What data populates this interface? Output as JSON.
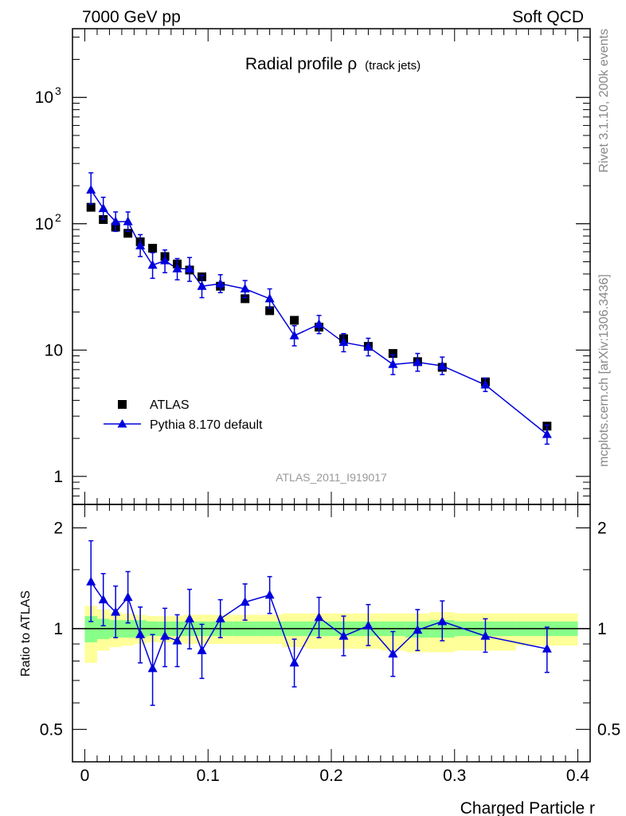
{
  "header": {
    "energy": "7000 GeV pp",
    "category": "Soft QCD",
    "rivet": "Rivet 3.1.10,  200k events",
    "source": "mcplots.cern.ch [arXiv:1306.3436]"
  },
  "colors": {
    "mc": "#0000dd",
    "band_stat": "#88ff88",
    "band_total": "#ffff99",
    "data": "#000000"
  },
  "chart_data": [
    {
      "type": "scatter",
      "title": "Radial profile ρ",
      "title_sub": "(track jets)",
      "analysis": "ATLAS_2011_I919017",
      "yscale": "log",
      "xlim": [
        -0.01,
        0.41
      ],
      "ylim": [
        0.6,
        3500
      ],
      "x_ticks": [
        0,
        0.1,
        0.2,
        0.3,
        0.4
      ],
      "y_ticks": [
        {
          "value": 1,
          "label": "1"
        },
        {
          "value": 10,
          "label": "10"
        },
        {
          "value": 100,
          "label": "10",
          "exp": "2"
        },
        {
          "value": 1000,
          "label": "10",
          "exp": "3"
        }
      ],
      "legend": {
        "position": "bottom-left",
        "entries": [
          "ATLAS",
          "Pythia 8.170 default"
        ]
      },
      "series": [
        {
          "name": "ATLAS",
          "marker": "square",
          "x": [
            0.005,
            0.015,
            0.025,
            0.035,
            0.045,
            0.055,
            0.065,
            0.075,
            0.085,
            0.095,
            0.11,
            0.13,
            0.15,
            0.17,
            0.19,
            0.21,
            0.23,
            0.25,
            0.27,
            0.29,
            0.325,
            0.375
          ],
          "y": [
            135,
            108,
            94,
            84,
            72,
            64,
            55,
            48,
            43,
            38,
            32,
            25.5,
            20.5,
            17.2,
            15.2,
            12.3,
            10.7,
            9.4,
            8.1,
            7.3,
            5.6,
            2.5
          ]
        },
        {
          "name": "Pythia 8.170 default",
          "marker": "triangle",
          "x": [
            0.005,
            0.015,
            0.025,
            0.035,
            0.045,
            0.055,
            0.065,
            0.075,
            0.085,
            0.095,
            0.11,
            0.13,
            0.15,
            0.17,
            0.19,
            0.21,
            0.23,
            0.25,
            0.27,
            0.29,
            0.325,
            0.375
          ],
          "y": [
            185,
            132,
            104,
            104,
            67,
            47,
            51,
            44,
            44,
            32,
            33.5,
            30.5,
            25.5,
            13,
            16,
            11.5,
            10.6,
            7.7,
            8.0,
            7.5,
            5.3,
            2.15
          ],
          "err_lo": [
            42,
            23,
            17,
            17,
            12,
            10,
            10,
            8,
            9,
            6,
            5,
            4.5,
            4,
            2.2,
            2.5,
            1.8,
            1.6,
            1.3,
            1.2,
            1.1,
            0.6,
            0.35
          ],
          "err_hi": [
            68,
            30,
            20,
            20,
            15,
            12,
            11,
            9,
            10,
            7,
            6,
            5,
            5,
            2.6,
            2.8,
            2.0,
            1.8,
            1.5,
            1.4,
            1.3,
            0.7,
            0.4
          ]
        }
      ]
    },
    {
      "type": "scatter",
      "ylabel": "Ratio to ATLAS",
      "xlabel": "Charged Particle r",
      "xlim": [
        -0.01,
        0.41
      ],
      "ylim": [
        0.4,
        2.35
      ],
      "yscale": "log",
      "x_ticks": [
        0,
        0.1,
        0.2,
        0.3,
        0.4
      ],
      "y_ticks": [
        0.5,
        1,
        2
      ],
      "bins": [
        {
          "lo": 0.0,
          "hi": 0.01,
          "stat": [
            0.91,
            1.09
          ],
          "total": [
            0.79,
            1.17
          ]
        },
        {
          "lo": 0.01,
          "hi": 0.02,
          "stat": [
            0.93,
            1.07
          ],
          "total": [
            0.86,
            1.14
          ]
        },
        {
          "lo": 0.02,
          "hi": 0.03,
          "stat": [
            0.94,
            1.06
          ],
          "total": [
            0.88,
            1.12
          ]
        },
        {
          "lo": 0.03,
          "hi": 0.04,
          "stat": [
            0.94,
            1.06
          ],
          "total": [
            0.89,
            1.11
          ]
        },
        {
          "lo": 0.04,
          "hi": 0.05,
          "stat": [
            0.94,
            1.06
          ],
          "total": [
            0.9,
            1.1
          ]
        },
        {
          "lo": 0.05,
          "hi": 0.06,
          "stat": [
            0.95,
            1.05
          ],
          "total": [
            0.91,
            1.09
          ]
        },
        {
          "lo": 0.06,
          "hi": 0.07,
          "stat": [
            0.95,
            1.05
          ],
          "total": [
            0.91,
            1.09
          ]
        },
        {
          "lo": 0.07,
          "hi": 0.08,
          "stat": [
            0.95,
            1.05
          ],
          "total": [
            0.91,
            1.09
          ]
        },
        {
          "lo": 0.08,
          "hi": 0.09,
          "stat": [
            0.95,
            1.05
          ],
          "total": [
            0.9,
            1.1
          ]
        },
        {
          "lo": 0.09,
          "hi": 0.1,
          "stat": [
            0.95,
            1.05
          ],
          "total": [
            0.9,
            1.1
          ]
        },
        {
          "lo": 0.1,
          "hi": 0.12,
          "stat": [
            0.95,
            1.05
          ],
          "total": [
            0.9,
            1.1
          ]
        },
        {
          "lo": 0.12,
          "hi": 0.14,
          "stat": [
            0.95,
            1.05
          ],
          "total": [
            0.9,
            1.1
          ]
        },
        {
          "lo": 0.14,
          "hi": 0.16,
          "stat": [
            0.95,
            1.05
          ],
          "total": [
            0.9,
            1.1
          ]
        },
        {
          "lo": 0.16,
          "hi": 0.18,
          "stat": [
            0.95,
            1.05
          ],
          "total": [
            0.88,
            1.11
          ]
        },
        {
          "lo": 0.18,
          "hi": 0.2,
          "stat": [
            0.95,
            1.05
          ],
          "total": [
            0.87,
            1.11
          ]
        },
        {
          "lo": 0.2,
          "hi": 0.22,
          "stat": [
            0.95,
            1.05
          ],
          "total": [
            0.87,
            1.11
          ]
        },
        {
          "lo": 0.22,
          "hi": 0.24,
          "stat": [
            0.95,
            1.05
          ],
          "total": [
            0.87,
            1.11
          ]
        },
        {
          "lo": 0.24,
          "hi": 0.26,
          "stat": [
            0.95,
            1.05
          ],
          "total": [
            0.86,
            1.11
          ]
        },
        {
          "lo": 0.26,
          "hi": 0.28,
          "stat": [
            0.94,
            1.05
          ],
          "total": [
            0.85,
            1.11
          ]
        },
        {
          "lo": 0.28,
          "hi": 0.3,
          "stat": [
            0.94,
            1.06
          ],
          "total": [
            0.85,
            1.12
          ]
        },
        {
          "lo": 0.3,
          "hi": 0.35,
          "stat": [
            0.95,
            1.05
          ],
          "total": [
            0.86,
            1.11
          ]
        },
        {
          "lo": 0.35,
          "hi": 0.4,
          "stat": [
            0.95,
            1.05
          ],
          "total": [
            0.89,
            1.11
          ]
        }
      ],
      "series": [
        {
          "name": "Pythia 8.170 default",
          "x": [
            0.005,
            0.015,
            0.025,
            0.035,
            0.045,
            0.055,
            0.065,
            0.075,
            0.085,
            0.095,
            0.11,
            0.13,
            0.15,
            0.17,
            0.19,
            0.21,
            0.23,
            0.25,
            0.27,
            0.29,
            0.325,
            0.375
          ],
          "y": [
            1.38,
            1.22,
            1.12,
            1.24,
            0.96,
            0.76,
            0.95,
            0.92,
            1.07,
            0.86,
            1.07,
            1.2,
            1.26,
            0.79,
            1.08,
            0.95,
            1.02,
            0.84,
            0.99,
            1.05,
            0.95,
            0.87
          ],
          "err_lo": [
            0.33,
            0.2,
            0.18,
            0.2,
            0.17,
            0.17,
            0.18,
            0.15,
            0.2,
            0.15,
            0.13,
            0.14,
            0.15,
            0.12,
            0.14,
            0.12,
            0.13,
            0.12,
            0.13,
            0.13,
            0.1,
            0.13
          ],
          "err_hi": [
            0.45,
            0.24,
            0.22,
            0.24,
            0.2,
            0.2,
            0.2,
            0.18,
            0.24,
            0.17,
            0.15,
            0.16,
            0.17,
            0.14,
            0.16,
            0.14,
            0.16,
            0.14,
            0.15,
            0.16,
            0.12,
            0.14
          ]
        }
      ]
    }
  ]
}
